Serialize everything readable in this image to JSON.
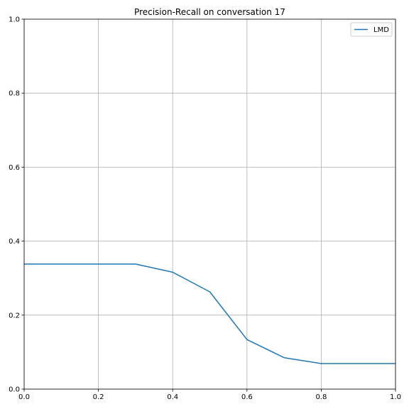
{
  "chart_data": {
    "type": "line",
    "title": "Precision-Recall on conversation 17",
    "xlabel": "",
    "ylabel": "",
    "xlim": [
      0.0,
      1.0
    ],
    "ylim": [
      0.0,
      1.0
    ],
    "x_ticks": [
      "0.0",
      "0.2",
      "0.4",
      "0.6",
      "0.8",
      "1.0"
    ],
    "y_ticks": [
      "0.0",
      "0.2",
      "0.4",
      "0.6",
      "0.8",
      "1.0"
    ],
    "grid": true,
    "legend_position": "top-right",
    "series": [
      {
        "name": "LMD",
        "color": "#1f77b4",
        "x": [
          0.0,
          0.1,
          0.2,
          0.3,
          0.4,
          0.5,
          0.6,
          0.7,
          0.8,
          0.9,
          1.0
        ],
        "y": [
          0.338,
          0.338,
          0.338,
          0.338,
          0.316,
          0.263,
          0.134,
          0.085,
          0.069,
          0.069,
          0.069
        ]
      }
    ]
  }
}
